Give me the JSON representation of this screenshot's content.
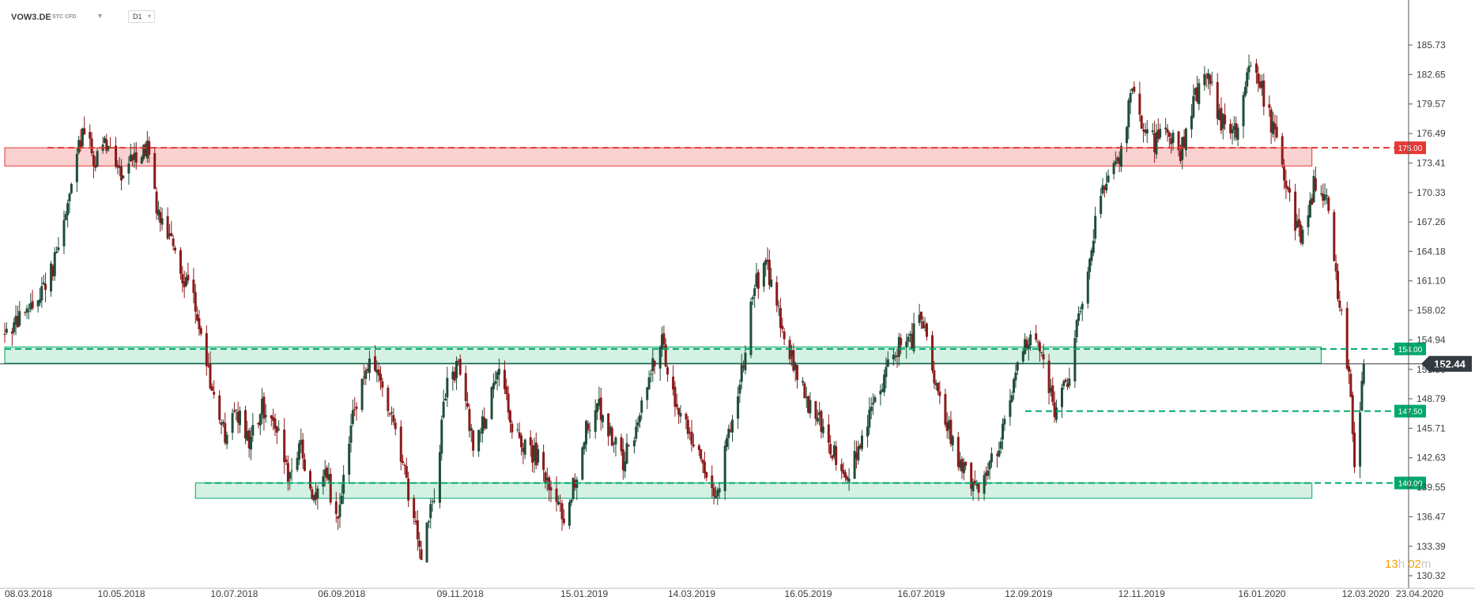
{
  "header": {
    "symbol": "VOW3.DE",
    "tag1": "STC",
    "tag2": "CFD",
    "timeframe": "D1"
  },
  "timer": {
    "hours": "13",
    "h": "h",
    "minutes": "02",
    "m": "m"
  },
  "colors": {
    "resistance": "#e53935",
    "support": "#00a86b",
    "zone_red_fill": "#f9c9c9",
    "zone_green_fill": "#cdeede",
    "candle_up": "#1f4d3a",
    "candle_down": "#8b1a1a",
    "current_price_bg": "#333a40"
  },
  "chart_data": {
    "type": "candlestick",
    "symbol": "VOW3.DE",
    "timeframe": "D1",
    "ylim": [
      130.32,
      187.5
    ],
    "y_ticks": [
      185.73,
      182.65,
      179.57,
      176.49,
      173.41,
      170.33,
      167.26,
      164.18,
      161.1,
      158.02,
      154.94,
      151.86,
      148.79,
      145.71,
      142.63,
      139.55,
      136.47,
      133.39,
      130.32
    ],
    "y_tick_labels": [
      "185.73",
      "182.65",
      "179.57",
      "176.49",
      "173.41",
      "170.33",
      "167.26",
      "164.18",
      "161.10",
      "158.02",
      "154.94",
      "151.86",
      "148.79",
      "145.71",
      "142.63",
      "139.55",
      "136.47",
      "133.39",
      "130.32"
    ],
    "x_tick_labels": [
      "08.03.2018",
      "10.05.2018",
      "10.07.2018",
      "06.09.2018",
      "09.11.2018",
      "15.01.2019",
      "14.03.2019",
      "16.05.2019",
      "16.07.2019",
      "12.09.2019",
      "12.11.2019",
      "16.01.2020",
      "12.03.2020",
      "23.04.2020"
    ],
    "levels": [
      {
        "value": 175.0,
        "label": "175.00",
        "kind": "resistance"
      },
      {
        "value": 154.0,
        "label": "154.00",
        "kind": "support"
      },
      {
        "value": 147.5,
        "label": "147.50",
        "kind": "support"
      },
      {
        "value": 140.0,
        "label": "140.00",
        "kind": "support"
      }
    ],
    "zones": [
      {
        "from": "08.03.2018",
        "to": "12.02.2020",
        "low": 173.1,
        "high": 175.0,
        "kind": "resistance"
      },
      {
        "from": "08.03.2018",
        "to": "17.02.2020",
        "low": 152.5,
        "high": 154.2,
        "kind": "support"
      },
      {
        "from": "19.06.2018",
        "to": "12.02.2020",
        "low": 138.4,
        "high": 140.0,
        "kind": "support"
      }
    ],
    "current_price": {
      "value": 152.44,
      "label": "152.44"
    },
    "price_path": [
      [
        "08.03.2018",
        155.5
      ],
      [
        "22.03.2018",
        158.0
      ],
      [
        "04.04.2018",
        163.0
      ],
      [
        "12.04.2018",
        170.0
      ],
      [
        "19.04.2018",
        177.0
      ],
      [
        "26.04.2018",
        173.5
      ],
      [
        "04.05.2018",
        176.0
      ],
      [
        "10.05.2018",
        172.0
      ],
      [
        "18.05.2018",
        174.5
      ],
      [
        "24.05.2018",
        175.0
      ],
      [
        "30.05.2018",
        168.0
      ],
      [
        "05.06.2018",
        166.0
      ],
      [
        "11.06.2018",
        162.0
      ],
      [
        "18.06.2018",
        160.0
      ],
      [
        "25.06.2018",
        152.0
      ],
      [
        "02.07.2018",
        147.0
      ],
      [
        "06.07.2018",
        144.0
      ],
      [
        "10.07.2018",
        148.0
      ],
      [
        "18.07.2018",
        144.0
      ],
      [
        "25.07.2018",
        148.0
      ],
      [
        "01.08.2018",
        146.5
      ],
      [
        "08.08.2018",
        141.0
      ],
      [
        "15.08.2018",
        143.5
      ],
      [
        "22.08.2018",
        138.0
      ],
      [
        "29.08.2018",
        141.0
      ],
      [
        "03.09.2018",
        136.0
      ],
      [
        "06.09.2018",
        139.0
      ],
      [
        "13.09.2018",
        148.0
      ],
      [
        "20.09.2018",
        152.5
      ],
      [
        "27.09.2018",
        151.0
      ],
      [
        "05.10.2018",
        145.0
      ],
      [
        "12.10.2018",
        139.0
      ],
      [
        "19.10.2018",
        133.0
      ],
      [
        "26.10.2018",
        139.0
      ],
      [
        "02.11.2018",
        151.0
      ],
      [
        "09.11.2018",
        152.0
      ],
      [
        "16.11.2018",
        144.0
      ],
      [
        "23.11.2018",
        147.0
      ],
      [
        "30.11.2018",
        151.5
      ],
      [
        "07.12.2018",
        146.0
      ],
      [
        "14.12.2018",
        144.0
      ],
      [
        "21.12.2018",
        142.5
      ],
      [
        "28.12.2018",
        138.5
      ],
      [
        "04.01.2019",
        136.5
      ],
      [
        "11.01.2019",
        141.0
      ],
      [
        "15.01.2019",
        145.0
      ],
      [
        "22.01.2019",
        148.5
      ],
      [
        "29.01.2019",
        145.0
      ],
      [
        "05.02.2019",
        142.0
      ],
      [
        "12.02.2019",
        146.0
      ],
      [
        "19.02.2019",
        151.5
      ],
      [
        "26.02.2019",
        155.0
      ],
      [
        "05.03.2019",
        148.0
      ],
      [
        "14.03.2019",
        145.0
      ],
      [
        "21.03.2019",
        141.0
      ],
      [
        "28.03.2019",
        139.0
      ],
      [
        "04.04.2019",
        146.0
      ],
      [
        "11.04.2019",
        153.0
      ],
      [
        "16.04.2019",
        160.0
      ],
      [
        "23.04.2019",
        163.0
      ],
      [
        "30.04.2019",
        158.0
      ],
      [
        "07.05.2019",
        153.0
      ],
      [
        "16.05.2019",
        148.0
      ],
      [
        "23.05.2019",
        146.0
      ],
      [
        "30.05.2019",
        143.0
      ],
      [
        "06.06.2019",
        141.0
      ],
      [
        "13.06.2019",
        144.0
      ],
      [
        "20.06.2019",
        148.0
      ],
      [
        "27.06.2019",
        152.0
      ],
      [
        "04.07.2019",
        154.5
      ],
      [
        "11.07.2019",
        155.0
      ],
      [
        "16.07.2019",
        158.0
      ],
      [
        "23.07.2019",
        150.0
      ],
      [
        "30.07.2019",
        146.0
      ],
      [
        "06.08.2019",
        142.0
      ],
      [
        "13.08.2019",
        139.0
      ],
      [
        "20.08.2019",
        141.0
      ],
      [
        "27.08.2019",
        144.0
      ],
      [
        "03.09.2019",
        150.0
      ],
      [
        "12.09.2019",
        155.5
      ],
      [
        "19.09.2019",
        153.0
      ],
      [
        "26.09.2019",
        147.5
      ],
      [
        "03.10.2019",
        151.0
      ],
      [
        "10.10.2019",
        158.0
      ],
      [
        "17.10.2019",
        166.0
      ],
      [
        "24.10.2019",
        172.0
      ],
      [
        "31.10.2019",
        174.0
      ],
      [
        "07.11.2019",
        181.0
      ],
      [
        "12.11.2019",
        178.0
      ],
      [
        "19.11.2019",
        175.5
      ],
      [
        "26.11.2019",
        177.0
      ],
      [
        "03.12.2019",
        174.5
      ],
      [
        "10.12.2019",
        180.0
      ],
      [
        "17.12.2019",
        183.0
      ],
      [
        "24.12.2019",
        178.0
      ],
      [
        "02.01.2020",
        177.0
      ],
      [
        "09.01.2020",
        184.5
      ],
      [
        "16.01.2020",
        181.0
      ],
      [
        "23.01.2020",
        176.0
      ],
      [
        "30.01.2020",
        170.0
      ],
      [
        "06.02.2020",
        165.0
      ],
      [
        "13.02.2020",
        171.0
      ],
      [
        "20.02.2020",
        170.0
      ],
      [
        "26.02.2020",
        160.0
      ],
      [
        "28.02.2020",
        157.0
      ],
      [
        "04.03.2020",
        150.0
      ],
      [
        "06.03.2020",
        141.0
      ],
      [
        "09.03.2020",
        148.0
      ],
      [
        "11.03.2020",
        152.44
      ]
    ]
  }
}
